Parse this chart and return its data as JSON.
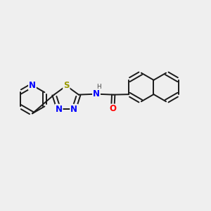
{
  "bg_color": "#efefef",
  "bond_color": "#1a1a1a",
  "N_color": "#0000ff",
  "S_color": "#999900",
  "O_color": "#ff0000",
  "lw": 1.4,
  "dbo": 0.055,
  "fs": 8.5,
  "fig_w": 3.0,
  "fig_h": 3.0,
  "dpi": 100,
  "xlim": [
    -3.0,
    3.2
  ],
  "ylim": [
    -1.8,
    1.8
  ]
}
